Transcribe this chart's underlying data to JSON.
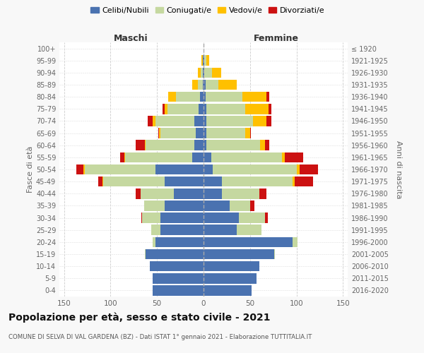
{
  "age_groups": [
    "0-4",
    "5-9",
    "10-14",
    "15-19",
    "20-24",
    "25-29",
    "30-34",
    "35-39",
    "40-44",
    "45-49",
    "50-54",
    "55-59",
    "60-64",
    "65-69",
    "70-74",
    "75-79",
    "80-84",
    "85-89",
    "90-94",
    "95-99",
    "100+"
  ],
  "birth_years": [
    "2016-2020",
    "2011-2015",
    "2006-2010",
    "2001-2005",
    "1996-2000",
    "1991-1995",
    "1986-1990",
    "1981-1985",
    "1976-1980",
    "1971-1975",
    "1966-1970",
    "1961-1965",
    "1956-1960",
    "1951-1955",
    "1946-1950",
    "1941-1945",
    "1936-1940",
    "1931-1935",
    "1926-1930",
    "1921-1925",
    "≤ 1920"
  ],
  "colors": {
    "celibi": "#4a72b0",
    "coniugati": "#c5d8a0",
    "vedovi": "#ffc000",
    "divorziati": "#cc1111"
  },
  "maschi": {
    "celibi": [
      55,
      55,
      58,
      62,
      52,
      46,
      46,
      42,
      32,
      42,
      52,
      12,
      10,
      8,
      10,
      5,
      4,
      1,
      1,
      1,
      0
    ],
    "coniugati": [
      0,
      0,
      0,
      1,
      3,
      10,
      20,
      22,
      36,
      66,
      76,
      72,
      52,
      38,
      42,
      34,
      26,
      5,
      2,
      0,
      0
    ],
    "vedovi": [
      0,
      0,
      0,
      0,
      0,
      0,
      0,
      0,
      0,
      1,
      1,
      1,
      1,
      2,
      3,
      3,
      8,
      6,
      3,
      1,
      0
    ],
    "divorziati": [
      0,
      0,
      0,
      0,
      0,
      0,
      1,
      0,
      5,
      4,
      8,
      5,
      10,
      1,
      5,
      2,
      0,
      0,
      0,
      0,
      0
    ]
  },
  "femmine": {
    "celibi": [
      52,
      57,
      60,
      76,
      96,
      36,
      38,
      28,
      20,
      20,
      10,
      8,
      3,
      3,
      3,
      3,
      2,
      2,
      1,
      1,
      0
    ],
    "coniugati": [
      0,
      0,
      0,
      1,
      5,
      26,
      28,
      22,
      40,
      76,
      90,
      76,
      58,
      42,
      50,
      42,
      40,
      14,
      8,
      2,
      0
    ],
    "vedovi": [
      0,
      0,
      0,
      0,
      0,
      0,
      0,
      0,
      0,
      2,
      3,
      3,
      5,
      5,
      15,
      25,
      26,
      20,
      10,
      3,
      0
    ],
    "divorziati": [
      0,
      0,
      0,
      0,
      0,
      0,
      3,
      5,
      8,
      20,
      20,
      20,
      5,
      1,
      5,
      3,
      3,
      0,
      0,
      0,
      0
    ]
  },
  "title": "Popolazione per età, sesso e stato civile - 2021",
  "subtitle": "COMUNE DI SELVA DI VAL GARDENA (BZ) - Dati ISTAT 1° gennaio 2021 - Elaborazione TUTTITALIA.IT",
  "xlabel_left": "Maschi",
  "xlabel_right": "Femmine",
  "ylabel_left": "Fasce di età",
  "ylabel_right": "Anni di nascita",
  "xlim": 155,
  "bg_color": "#f8f8f8",
  "plot_bg": "#ffffff"
}
